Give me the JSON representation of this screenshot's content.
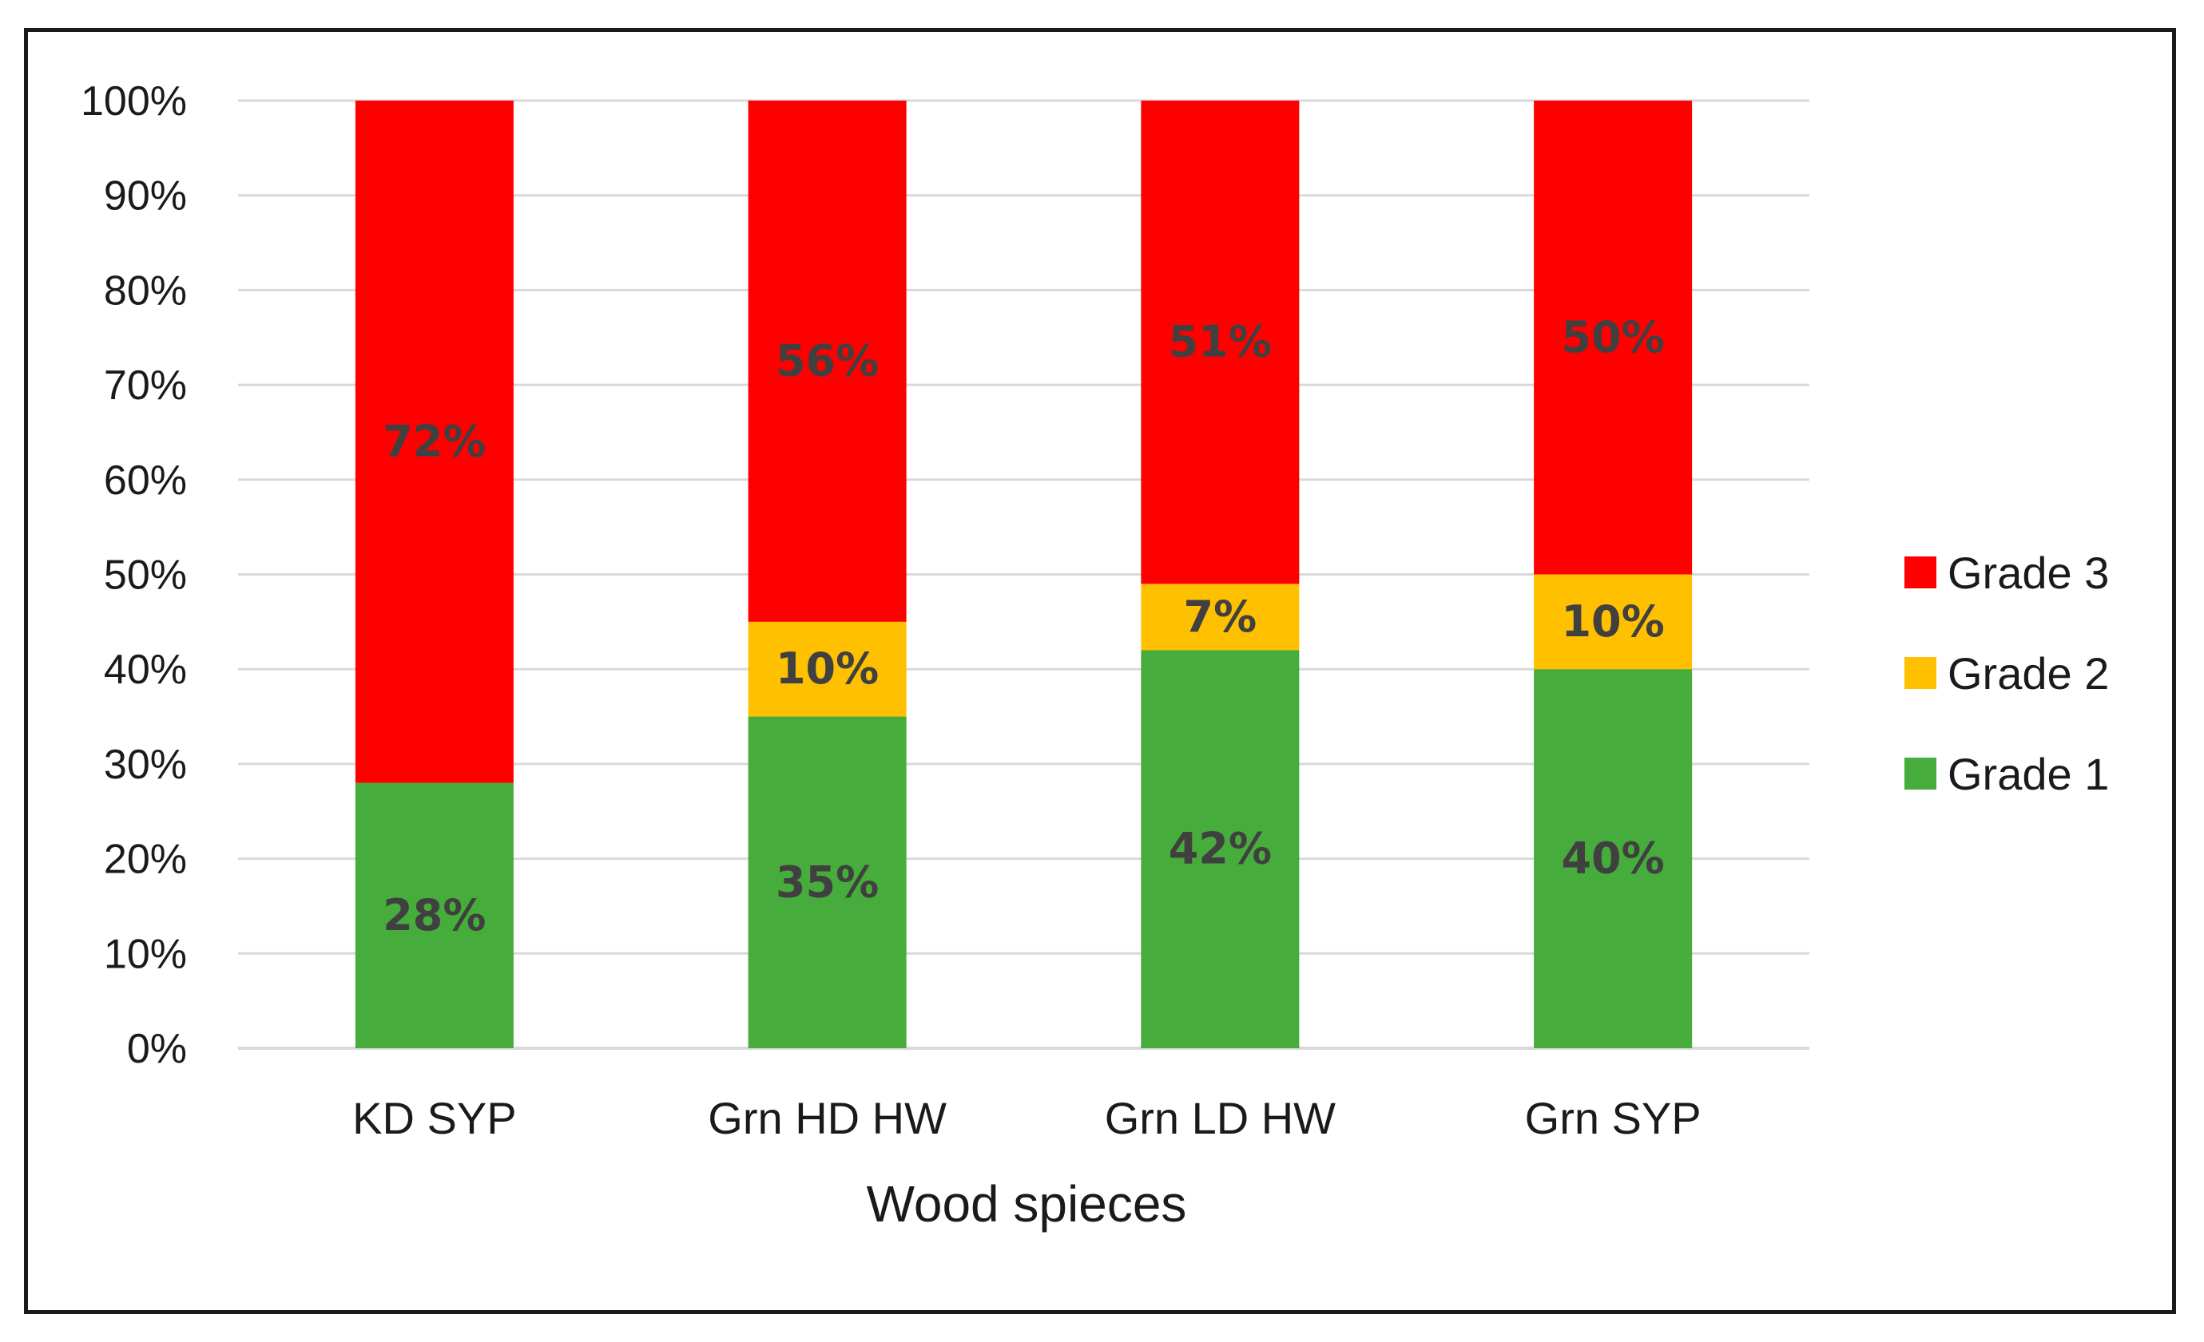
{
  "chart_data": {
    "type": "bar",
    "stacked": true,
    "title": "",
    "xlabel": "Wood spieces",
    "ylabel": "",
    "categories": [
      "KD SYP",
      "Grn HD HW",
      "Grn LD HW",
      "Grn SYP"
    ],
    "series": [
      {
        "name": "Grade 1",
        "color": "#46ac3c",
        "values": [
          28,
          35,
          42,
          40
        ],
        "labels": [
          "28%",
          "35%",
          "42%",
          "40%"
        ]
      },
      {
        "name": "Grade 2",
        "color": "#ffc000",
        "values": [
          0,
          10,
          7,
          10
        ],
        "labels": [
          "",
          "10%",
          "7%",
          "10%"
        ]
      },
      {
        "name": "Grade 3",
        "color": "#ff0000",
        "values": [
          72,
          56,
          51,
          50
        ],
        "labels": [
          "72%",
          "56%",
          "51%",
          "50%"
        ]
      }
    ],
    "ylim": [
      0,
      100
    ],
    "yticks": [
      "0%",
      "10%",
      "20%",
      "30%",
      "40%",
      "50%",
      "60%",
      "70%",
      "80%",
      "90%",
      "100%"
    ],
    "grid": true,
    "legend_position": "right",
    "legend_order": [
      "Grade 3",
      "Grade 2",
      "Grade 1"
    ],
    "gridline_color": "#d9d9d9"
  }
}
